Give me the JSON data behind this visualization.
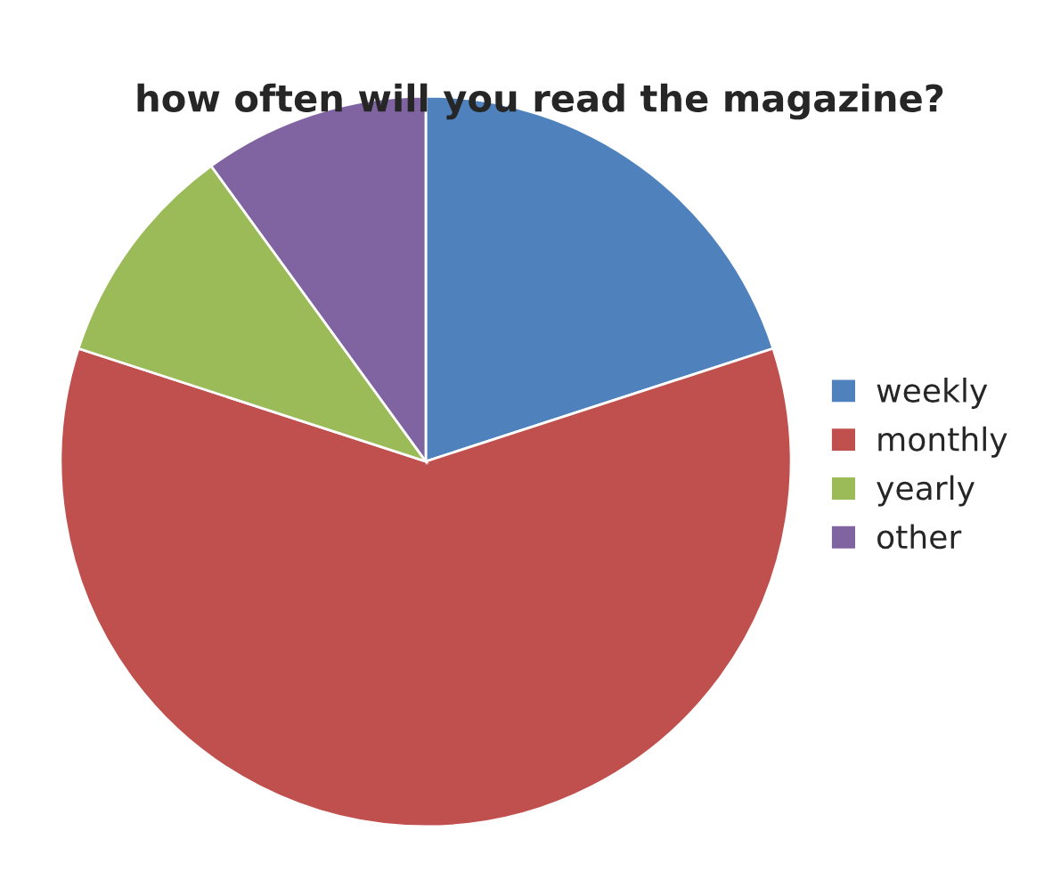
{
  "chart_data": {
    "type": "pie",
    "title": "how often will you read the magazine?",
    "categories": [
      "weekly",
      "monthly",
      "yearly",
      "other"
    ],
    "values": [
      20,
      60,
      10,
      10
    ],
    "colors": [
      "#4f81bd",
      "#c0504d",
      "#9bbb59",
      "#8064a2"
    ],
    "legend": "right"
  }
}
